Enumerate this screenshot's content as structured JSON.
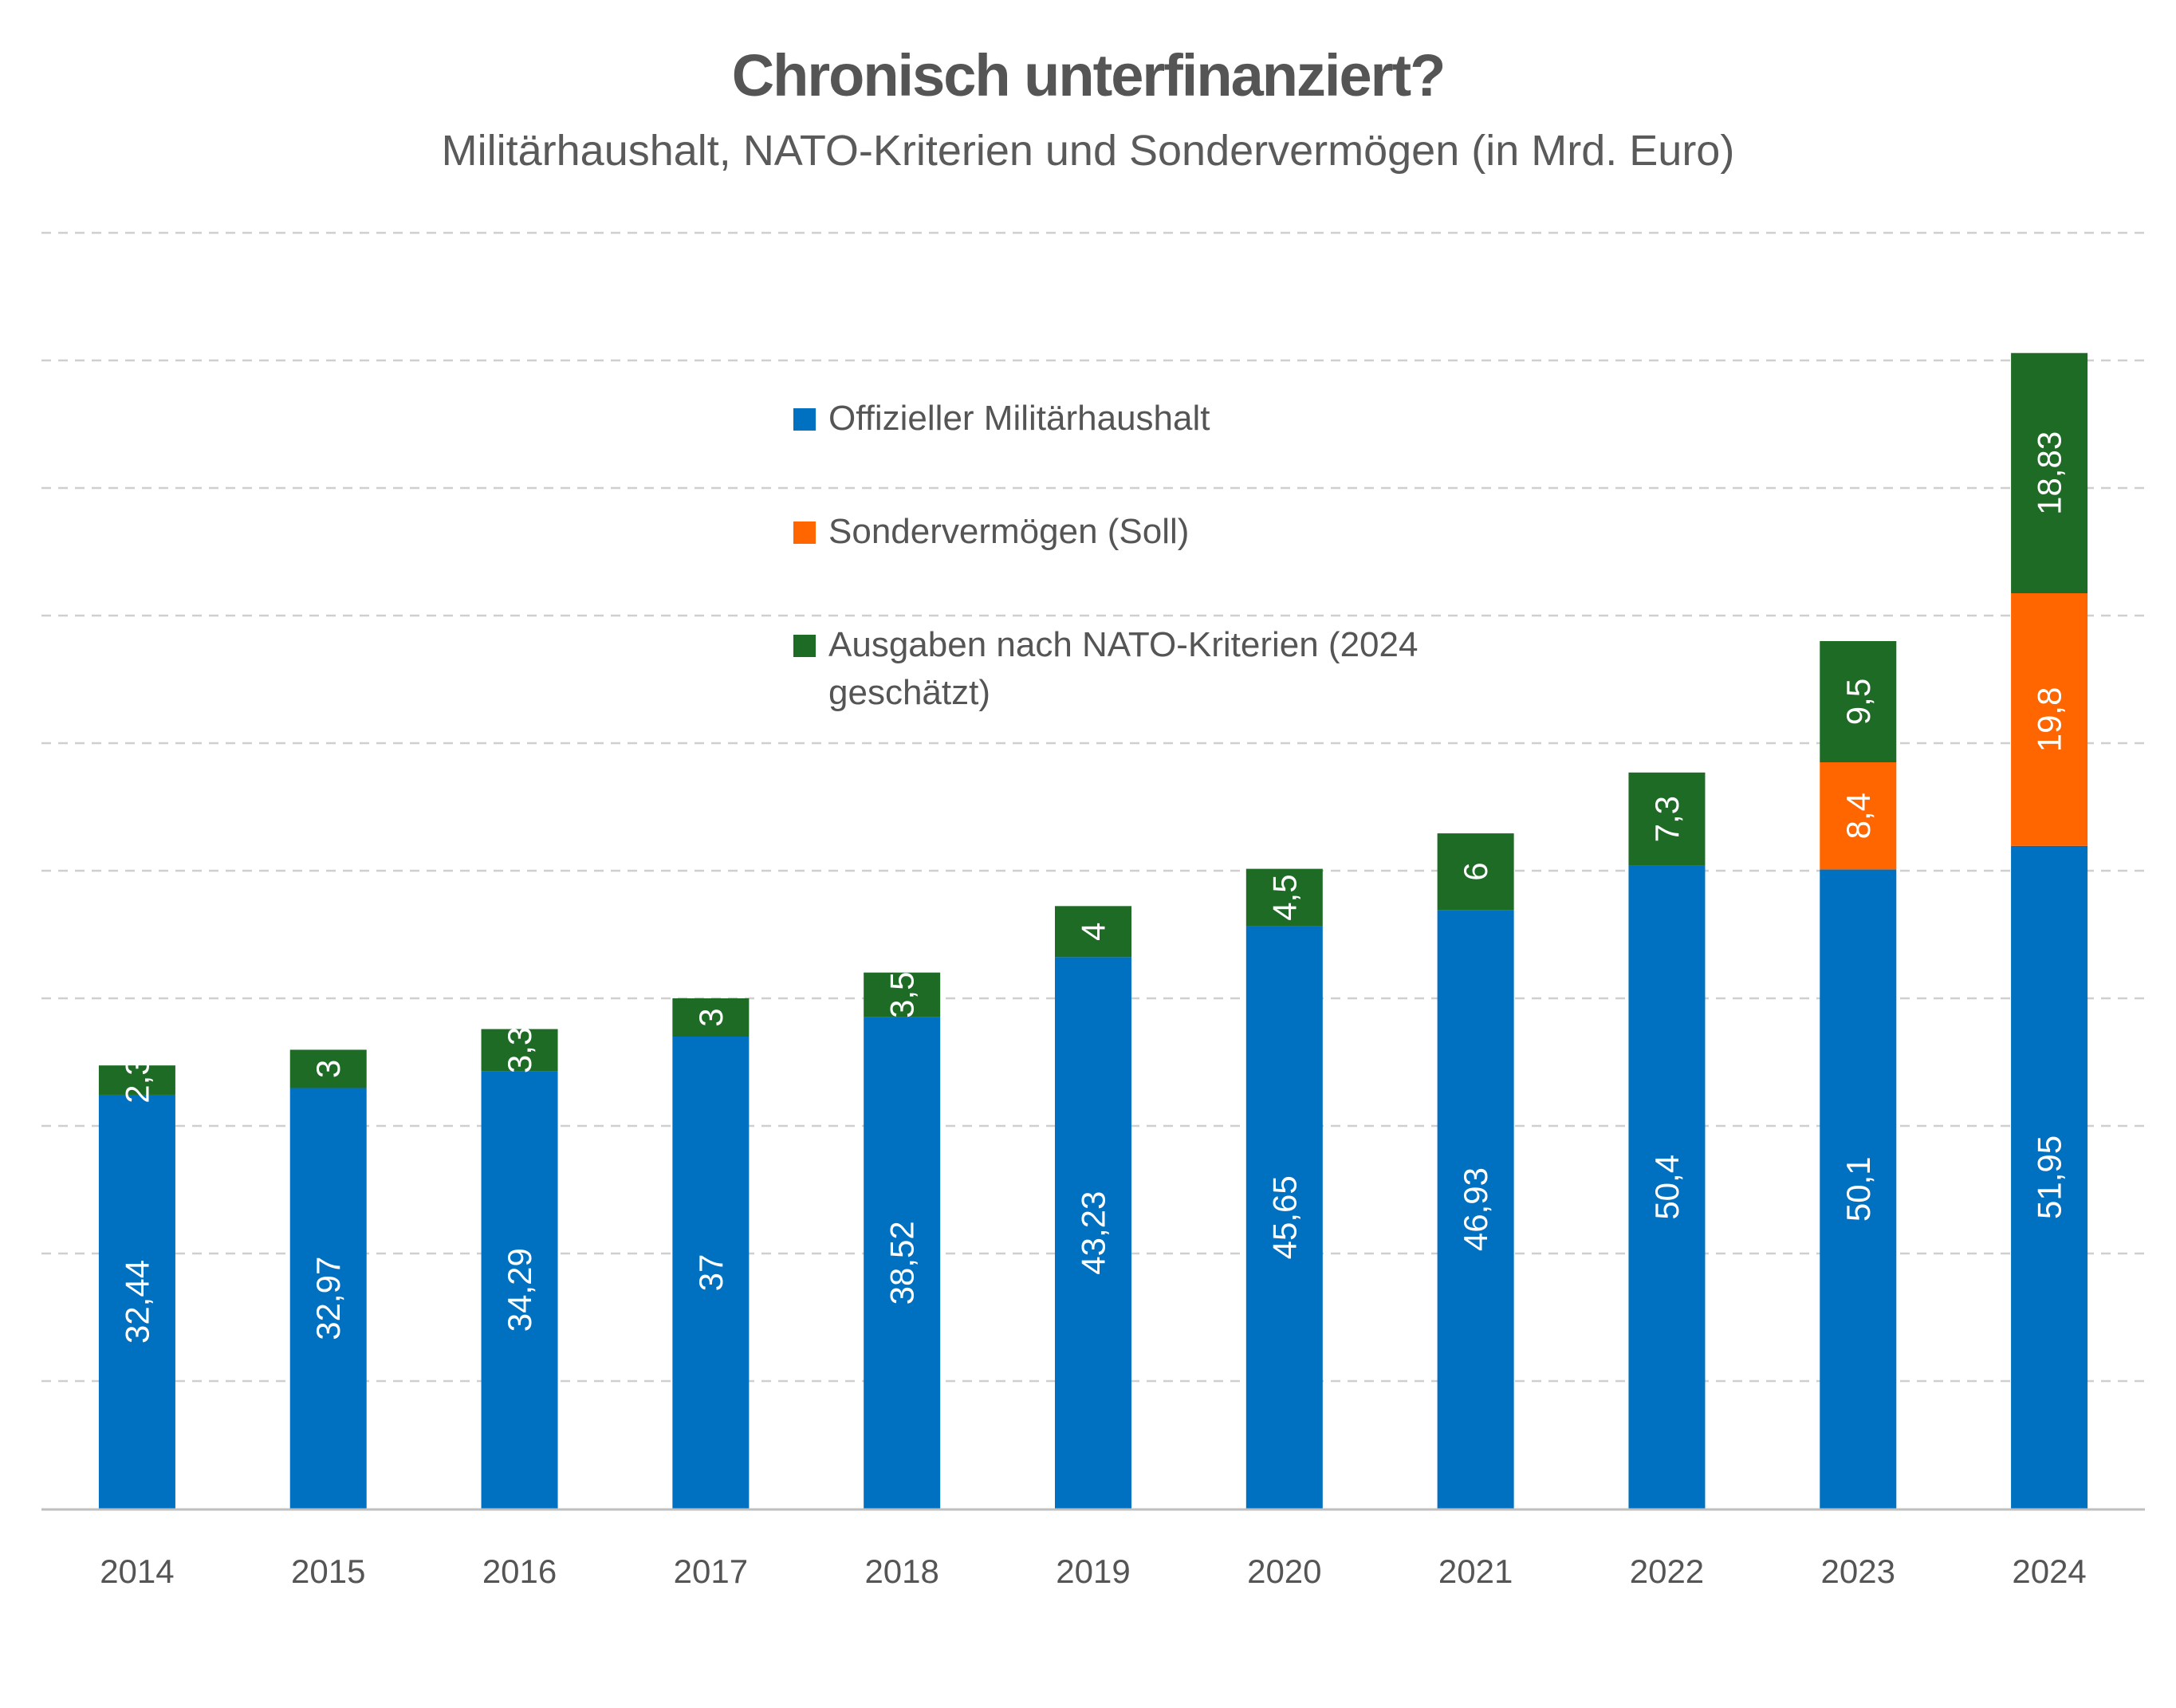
{
  "title": "Chronisch unterfinanziert?",
  "subtitle": "Militärhaushalt, NATO-Kriterien und Sondervermögen (in Mrd. Euro)",
  "chart_data": {
    "type": "bar",
    "stacked": true,
    "categories": [
      "2014",
      "2015",
      "2016",
      "2017",
      "2018",
      "2019",
      "2020",
      "2021",
      "2022",
      "2023",
      "2024"
    ],
    "series": [
      {
        "name": "Offizieller Militärhaushalt",
        "color": "#0070c0",
        "values": [
          32.44,
          32.97,
          34.29,
          37,
          38.52,
          43.23,
          45.65,
          46.93,
          50.4,
          50.1,
          51.95
        ],
        "labels": [
          "32,44",
          "32,97",
          "34,29",
          "37",
          "38,52",
          "43,23",
          "45,65",
          "46,93",
          "50,4",
          "50,1",
          "51,95"
        ]
      },
      {
        "name": "Sondervermögen (Soll)",
        "color": "#ff6600",
        "values": [
          0,
          0,
          0,
          0,
          0,
          0,
          0,
          0,
          0,
          8.4,
          19.8
        ],
        "labels": [
          "",
          "",
          "",
          "",
          "",
          "",
          "",
          "",
          "",
          "8,4",
          "19,8"
        ]
      },
      {
        "name": "Ausgaben nach NATO-Kriterien (2024 geschätzt)",
        "color": "#1e6b26",
        "values": [
          2.3,
          3,
          3.3,
          3,
          3.5,
          4,
          4.5,
          6,
          7.3,
          9.5,
          18.83
        ],
        "labels": [
          "2,3",
          "3",
          "3,3",
          "3",
          "3,5",
          "4",
          "4,5",
          "6",
          "7,3",
          "9,5",
          "18,83"
        ]
      }
    ],
    "ylim": [
      0,
      100
    ],
    "grid": true,
    "legend_position": "top-center"
  }
}
